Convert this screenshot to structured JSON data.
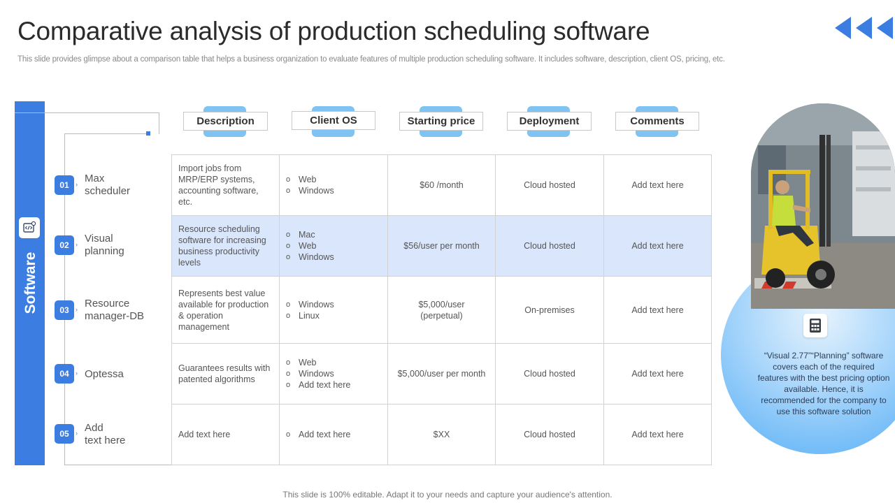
{
  "header": {
    "title": "Comparative analysis of production scheduling software",
    "subtitle": "This slide provides glimpse about a comparison table that helps a business organization to evaluate features of multiple production scheduling software. It includes software, description, client OS, pricing, etc."
  },
  "nav": {
    "arrows_icon": "triple-left-chevron-icon"
  },
  "sidebar": {
    "label": "Software",
    "icon": "code-settings-icon"
  },
  "columns": [
    "Description",
    "Client OS",
    "Starting price",
    "Deployment",
    "Comments"
  ],
  "rows": [
    {
      "num": "01",
      "name_line1": "Max",
      "name_line2": "scheduler",
      "description": "Import jobs from MRP/ERP systems, accounting software, etc.",
      "os": [
        "Web",
        "Windows"
      ],
      "price": "$60 /month",
      "deployment": "Cloud hosted",
      "comments": "Add text here"
    },
    {
      "num": "02",
      "name_line1": "Visual",
      "name_line2": "planning",
      "description": "Resource scheduling software for increasing business productivity levels",
      "os": [
        "Mac",
        "Web",
        "Windows"
      ],
      "price": "$56/user per month",
      "deployment": "Cloud hosted",
      "comments": "Add text here"
    },
    {
      "num": "03",
      "name_line1": "Resource",
      "name_line2": "manager-DB",
      "description": "Represents best value available for production & operation management",
      "os": [
        "Windows",
        "Linux"
      ],
      "price": "$5,000/user (perpetual)",
      "deployment": "On-premises",
      "comments": "Add text here"
    },
    {
      "num": "04",
      "name_line1": "Optessa",
      "name_line2": "",
      "description": "Guarantees results with patented algorithms",
      "os": [
        "Web",
        "Windows",
        "Add text here"
      ],
      "price": "$5,000/user per month",
      "deployment": "Cloud hosted",
      "comments": "Add text here"
    },
    {
      "num": "05",
      "name_line1": "Add",
      "name_line2": "text here",
      "description": "Add text here",
      "os": [
        "Add text here"
      ],
      "price": "$XX",
      "deployment": "Cloud hosted",
      "comments": "Add text here"
    }
  ],
  "callout": {
    "icon": "calculator-icon",
    "text": "“Visual 2.77”“Planning” software covers each of the required features with the best pricing option available. Hence, it is recommended for the company to use this software solution"
  },
  "footer": {
    "text": "This slide is 100% editable. Adapt it to your needs and capture your audience's attention."
  },
  "colors": {
    "accent": "#3b7de0",
    "light_accent": "#7fc3f3",
    "highlight_row": "#dae6fb"
  }
}
